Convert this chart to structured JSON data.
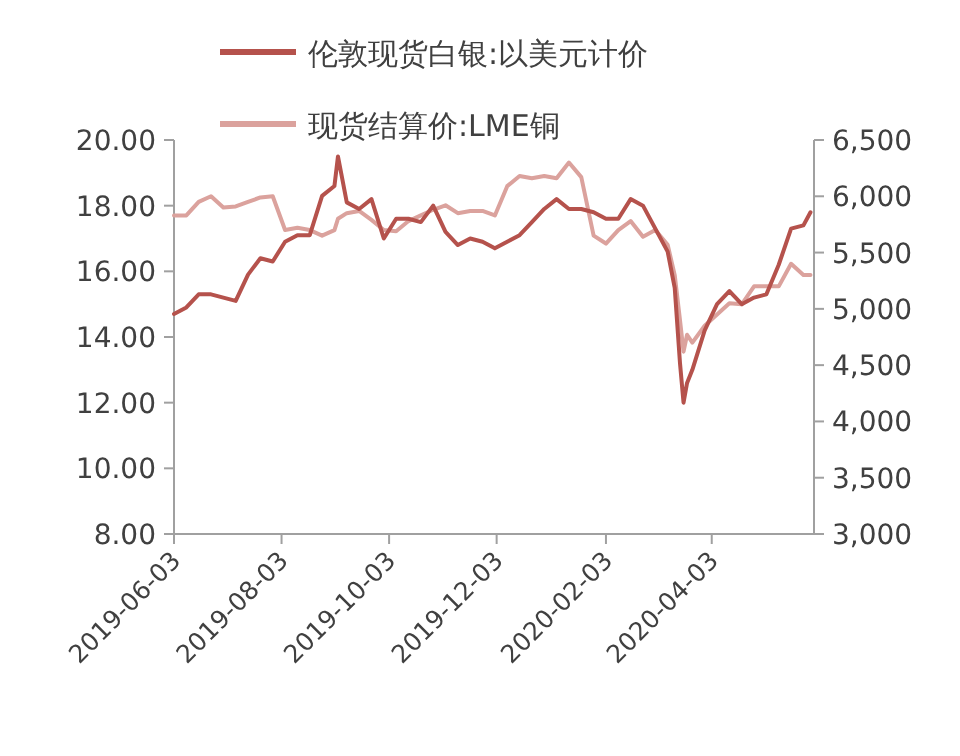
{
  "chart_data": {
    "type": "line",
    "legend": "top",
    "grid": false,
    "marker": "none",
    "line_style": "solid",
    "x": [
      "2019-06-03",
      "2019-06-10",
      "2019-06-17",
      "2019-06-24",
      "2019-07-01",
      "2019-07-08",
      "2019-07-15",
      "2019-07-22",
      "2019-07-29",
      "2019-08-05",
      "2019-08-12",
      "2019-08-19",
      "2019-08-26",
      "2019-09-02",
      "2019-09-04",
      "2019-09-09",
      "2019-09-16",
      "2019-09-23",
      "2019-09-30",
      "2019-10-07",
      "2019-10-14",
      "2019-10-21",
      "2019-10-28",
      "2019-11-04",
      "2019-11-11",
      "2019-11-18",
      "2019-11-25",
      "2019-12-02",
      "2019-12-09",
      "2019-12-16",
      "2019-12-23",
      "2019-12-30",
      "2020-01-06",
      "2020-01-13",
      "2020-01-20",
      "2020-01-27",
      "2020-02-03",
      "2020-02-10",
      "2020-02-17",
      "2020-02-24",
      "2020-03-02",
      "2020-03-09",
      "2020-03-13",
      "2020-03-16",
      "2020-03-18",
      "2020-03-20",
      "2020-03-23",
      "2020-03-30",
      "2020-04-06",
      "2020-04-13",
      "2020-04-20",
      "2020-04-27",
      "2020-05-04",
      "2020-05-11",
      "2020-05-18",
      "2020-05-25",
      "2020-05-29"
    ],
    "series": [
      {
        "name": "伦敦现货白银:以美元计价",
        "color": "#b5524c",
        "values": [
          14.7,
          14.9,
          15.3,
          15.3,
          15.2,
          15.1,
          15.9,
          16.4,
          16.3,
          16.9,
          17.1,
          17.1,
          18.3,
          18.6,
          19.5,
          18.1,
          17.9,
          18.2,
          17.0,
          17.6,
          17.6,
          17.5,
          18.0,
          17.2,
          16.8,
          17.0,
          16.9,
          16.7,
          16.9,
          17.1,
          17.5,
          17.9,
          18.2,
          17.9,
          17.9,
          17.8,
          17.6,
          17.6,
          18.2,
          18.0,
          17.3,
          16.6,
          15.5,
          13.2,
          12.0,
          12.6,
          13.0,
          14.2,
          15.0,
          15.4,
          15.0,
          15.2,
          15.3,
          16.2,
          17.3,
          17.4,
          17.8
        ]
      },
      {
        "name": "现货结算价:LME铜",
        "color": "#dba29d",
        "axis": "y2",
        "values": [
          5830,
          5830,
          5950,
          6000,
          5900,
          5910,
          5950,
          5990,
          6000,
          5700,
          5720,
          5700,
          5650,
          5700,
          5800,
          5850,
          5870,
          5790,
          5700,
          5690,
          5780,
          5830,
          5880,
          5920,
          5850,
          5870,
          5870,
          5830,
          6090,
          6180,
          6160,
          6180,
          6160,
          6300,
          6170,
          5650,
          5580,
          5700,
          5780,
          5640,
          5700,
          5570,
          5300,
          4900,
          4620,
          4770,
          4700,
          4850,
          4950,
          5050,
          5040,
          5200,
          5200,
          5200,
          5400,
          5300,
          5300
        ]
      }
    ],
    "xlim": [
      "2019-06-03",
      "2020-05-31"
    ],
    "xticks": [
      "2019-06-03",
      "2019-08-03",
      "2019-10-03",
      "2019-12-03",
      "2020-02-03",
      "2020-04-03"
    ],
    "ylim": [
      8,
      20
    ],
    "yticks": [
      {
        "value": 8,
        "label": "8.00"
      },
      {
        "value": 10,
        "label": "10.00"
      },
      {
        "value": 12,
        "label": "12.00"
      },
      {
        "value": 14,
        "label": "14.00"
      },
      {
        "value": 16,
        "label": "16.00"
      },
      {
        "value": 18,
        "label": "18.00"
      },
      {
        "value": 20,
        "label": "20.00"
      }
    ],
    "y2lim": [
      3000,
      6500
    ],
    "y2ticks": [
      {
        "value": 3000,
        "label": "3,000"
      },
      {
        "value": 3500,
        "label": "3,500"
      },
      {
        "value": 4000,
        "label": "4,000"
      },
      {
        "value": 4500,
        "label": "4,500"
      },
      {
        "value": 5000,
        "label": "5,000"
      },
      {
        "value": 5500,
        "label": "5,500"
      },
      {
        "value": 6000,
        "label": "6,000"
      },
      {
        "value": 6500,
        "label": "6,500"
      }
    ]
  }
}
